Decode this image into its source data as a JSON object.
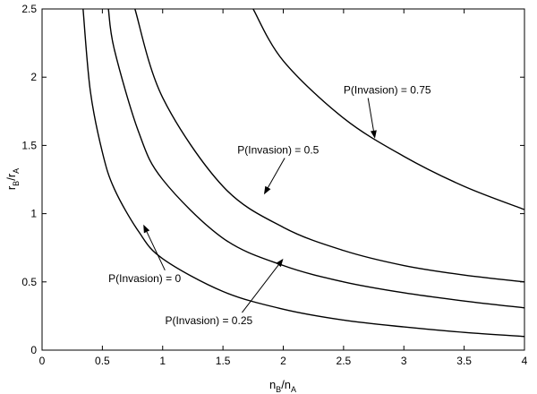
{
  "chart_data": {
    "type": "line",
    "title": "",
    "xlabel": {
      "main": "n",
      "sub1": "B",
      "sep": "/n",
      "sub2": "A"
    },
    "ylabel": {
      "main": "r",
      "sub1": "B",
      "sep": "/r",
      "sub2": "A"
    },
    "xlim": [
      0,
      4
    ],
    "ylim": [
      0,
      2.5
    ],
    "xticks": [
      "0",
      "0.5",
      "1",
      "1.5",
      "2",
      "2.5",
      "3",
      "3.5",
      "4"
    ],
    "yticks": [
      "0",
      "0.5",
      "1",
      "1.5",
      "2",
      "2.5"
    ],
    "grid": false,
    "series": [
      {
        "x": [
          0.34,
          0.4,
          0.5,
          0.6,
          0.8,
          1.0,
          1.5,
          2.0,
          2.5,
          3.0,
          3.5,
          4.0
        ],
        "y": [
          2.5,
          1.9,
          1.45,
          1.18,
          0.87,
          0.67,
          0.43,
          0.3,
          0.22,
          0.17,
          0.13,
          0.1
        ]
      },
      {
        "x": [
          0.55,
          0.6,
          0.8,
          1.0,
          1.5,
          2.0,
          2.5,
          3.0,
          3.5,
          4.0
        ],
        "y": [
          2.5,
          2.2,
          1.6,
          1.25,
          0.82,
          0.62,
          0.5,
          0.42,
          0.36,
          0.31
        ]
      },
      {
        "x": [
          0.77,
          1.0,
          1.5,
          2.0,
          2.5,
          3.0,
          3.5,
          4.0
        ],
        "y": [
          2.5,
          1.85,
          1.2,
          0.9,
          0.73,
          0.62,
          0.55,
          0.5
        ]
      },
      {
        "x": [
          1.75,
          2.0,
          2.5,
          3.0,
          3.5,
          4.0
        ],
        "y": [
          2.5,
          2.12,
          1.7,
          1.42,
          1.2,
          1.03
        ]
      }
    ],
    "annotations": [
      {
        "text": "P(Invasion) = 0",
        "tx": 0.55,
        "ty": 0.5,
        "ax": 0.84,
        "ay": 0.92
      },
      {
        "text": "P(Invasion) = 0.25",
        "tx": 1.02,
        "ty": 0.19,
        "ax": 2.0,
        "ay": 0.67
      },
      {
        "text": "P(Invasion) = 0.5",
        "tx": 1.62,
        "ty": 1.44,
        "ax": 1.84,
        "ay": 1.14
      },
      {
        "text": "P(Invasion) = 0.75",
        "tx": 2.5,
        "ty": 1.88,
        "ax": 2.76,
        "ay": 1.55
      }
    ]
  }
}
